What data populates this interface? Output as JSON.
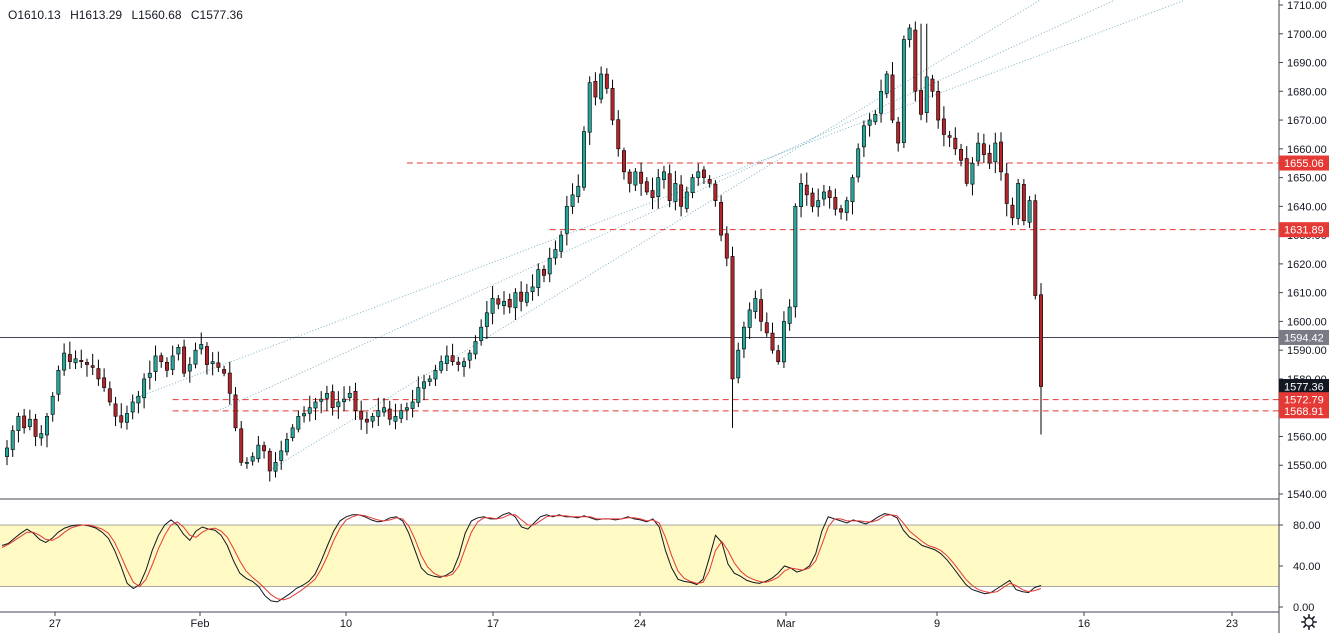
{
  "ohlc": {
    "open": "O1610.13",
    "high": "H1613.29",
    "low": "L1560.68",
    "close": "C1577.36"
  },
  "colors": {
    "up": "#26a69a",
    "down": "#b0262b",
    "wick": "#000000",
    "stoch_k": "#131722",
    "stoch_d": "#e53935",
    "stoch_band": "#fff9c4",
    "level_line": "#e53935",
    "channel": "#7fb4c8"
  },
  "chart_data": [
    {
      "type": "candlestick",
      "price_axis": {
        "min": 1540,
        "max": 1710,
        "ticks": [
          "1540.00",
          "1550.00",
          "1560.00",
          "1570.00",
          "1580.00",
          "1590.00",
          "1600.00",
          "1610.00",
          "1620.00",
          "1630.00",
          "1640.00",
          "1650.00",
          "1660.00",
          "1670.00",
          "1680.00",
          "1690.00",
          "1700.00",
          "1710.00"
        ]
      },
      "time_axis": {
        "labels": [
          "27",
          "Feb",
          "10",
          "17",
          "24",
          "Mar",
          "9",
          "16",
          "23"
        ]
      },
      "grid": false,
      "price_labels": [
        {
          "value": 1655.06,
          "text": "1655.06",
          "style": "red"
        },
        {
          "value": 1631.89,
          "text": "1631.89",
          "style": "red"
        },
        {
          "value": 1594.42,
          "text": "1594.42",
          "style": "gray"
        },
        {
          "value": 1577.36,
          "text": "1577.36",
          "style": "black"
        },
        {
          "value": 1572.79,
          "text": "1572.79",
          "style": "red"
        },
        {
          "value": 1568.91,
          "text": "1568.91",
          "style": "red"
        }
      ],
      "horizontal_levels": [
        {
          "value": 1655.06,
          "from_bar": 70,
          "dashed": true
        },
        {
          "value": 1631.89,
          "from_bar": 95,
          "dashed": true
        },
        {
          "value": 1572.79,
          "from_bar": 29,
          "dashed": true
        },
        {
          "value": 1568.91,
          "from_bar": 29,
          "dashed": true
        },
        {
          "value": 1594.42,
          "from_bar": 0,
          "dashed": false
        }
      ],
      "closes": [
        1556,
        1562,
        1567,
        1563,
        1566,
        1560,
        1561,
        1567,
        1574,
        1583,
        1589,
        1586,
        1587,
        1586,
        1585,
        1584,
        1580,
        1577,
        1572,
        1567,
        1565,
        1568,
        1572,
        1574,
        1580,
        1582,
        1588,
        1586,
        1583,
        1588,
        1591,
        1582,
        1585,
        1590,
        1592,
        1585,
        1586,
        1584,
        1582,
        1575,
        1563,
        1551,
        1551,
        1553,
        1557,
        1555,
        1548,
        1551,
        1555,
        1559,
        1563,
        1567,
        1568,
        1570,
        1572,
        1573,
        1575,
        1570,
        1572,
        1573,
        1575,
        1569,
        1566,
        1565,
        1567,
        1569,
        1570,
        1566,
        1567,
        1569,
        1570,
        1572,
        1577,
        1579,
        1580,
        1583,
        1586,
        1588,
        1586,
        1585,
        1586,
        1589,
        1593,
        1598,
        1603,
        1608,
        1606,
        1607,
        1605,
        1610,
        1607,
        1610,
        1612,
        1618,
        1616,
        1622,
        1625,
        1630,
        1640,
        1644,
        1647,
        1666,
        1683,
        1678,
        1686,
        1681,
        1670,
        1660,
        1652,
        1648,
        1652,
        1648,
        1645,
        1643,
        1650,
        1652,
        1642,
        1648,
        1640,
        1645,
        1650,
        1652,
        1650,
        1648,
        1642,
        1630,
        1622,
        1580,
        1590,
        1598,
        1604,
        1608,
        1600,
        1596,
        1590,
        1586,
        1600,
        1605,
        1640,
        1648,
        1644,
        1640,
        1642,
        1645,
        1643,
        1639,
        1638,
        1642,
        1650,
        1660,
        1668,
        1670,
        1672,
        1680,
        1686,
        1670,
        1662,
        1698,
        1702,
        1680,
        1672,
        1685,
        1680,
        1670,
        1665,
        1664,
        1660,
        1656,
        1648,
        1655,
        1662,
        1658,
        1655,
        1662,
        1652,
        1641,
        1636,
        1648,
        1635,
        1642,
        1609,
        1577.36
      ],
      "stochastic": {
        "upper_band": 80,
        "lower_band": 20,
        "ticks": [
          "0.00",
          "40.00",
          "80.00"
        ],
        "k": [
          60,
          62,
          67,
          72,
          76,
          72,
          66,
          63,
          67,
          73,
          77,
          79,
          80,
          80,
          79,
          77,
          73,
          67,
          55,
          40,
          23,
          18,
          22,
          36,
          55,
          70,
          80,
          85,
          80,
          71,
          65,
          74,
          78,
          76,
          75,
          70,
          60,
          45,
          33,
          28,
          25,
          20,
          11,
          6,
          5,
          9,
          13,
          18,
          21,
          25,
          32,
          45,
          60,
          74,
          84,
          88,
          90,
          90,
          88,
          85,
          83,
          84,
          87,
          88,
          84,
          72,
          55,
          38,
          32,
          30,
          29,
          31,
          35,
          50,
          72,
          84,
          87,
          88,
          86,
          86,
          90,
          92,
          88,
          78,
          76,
          82,
          88,
          90,
          88,
          90,
          88,
          88,
          87,
          89,
          87,
          85,
          86,
          86,
          85,
          86,
          88,
          86,
          85,
          83,
          86,
          78,
          55,
          38,
          27,
          25,
          24,
          22,
          27,
          48,
          70,
          63,
          42,
          33,
          30,
          26,
          24,
          23,
          25,
          28,
          33,
          40,
          38,
          34,
          36,
          40,
          52,
          74,
          88,
          86,
          84,
          82,
          85,
          83,
          81,
          84,
          88,
          91,
          90,
          87,
          75,
          68,
          65,
          60,
          58,
          56,
          52,
          46,
          38,
          30,
          22,
          17,
          15,
          13,
          14,
          18,
          22,
          26,
          17,
          15,
          14,
          19,
          21
        ],
        "d": [
          58,
          61,
          65,
          69,
          73,
          73,
          70,
          66,
          65,
          68,
          73,
          77,
          79,
          80,
          80,
          78,
          76,
          72,
          63,
          50,
          36,
          24,
          20,
          27,
          41,
          57,
          70,
          80,
          83,
          78,
          70,
          68,
          73,
          76,
          77,
          74,
          68,
          57,
          45,
          35,
          29,
          24,
          18,
          12,
          8,
          7,
          9,
          13,
          17,
          22,
          27,
          37,
          50,
          65,
          77,
          85,
          88,
          90,
          89,
          87,
          85,
          84,
          85,
          87,
          86,
          79,
          66,
          50,
          39,
          33,
          30,
          30,
          32,
          40,
          57,
          73,
          83,
          87,
          87,
          86,
          87,
          90,
          90,
          85,
          80,
          80,
          84,
          88,
          89,
          89,
          89,
          88,
          88,
          88,
          88,
          86,
          86,
          86,
          86,
          86,
          87,
          87,
          86,
          84,
          85,
          82,
          68,
          50,
          35,
          28,
          25,
          23,
          24,
          35,
          55,
          64,
          55,
          43,
          35,
          30,
          27,
          25,
          24,
          26,
          29,
          35,
          38,
          37,
          36,
          38,
          45,
          61,
          78,
          86,
          86,
          84,
          84,
          84,
          83,
          83,
          85,
          89,
          90,
          89,
          82,
          74,
          69,
          64,
          60,
          58,
          55,
          50,
          43,
          35,
          27,
          21,
          17,
          15,
          14,
          15,
          19,
          23,
          21,
          17,
          15,
          16,
          18
        ]
      }
    }
  ]
}
